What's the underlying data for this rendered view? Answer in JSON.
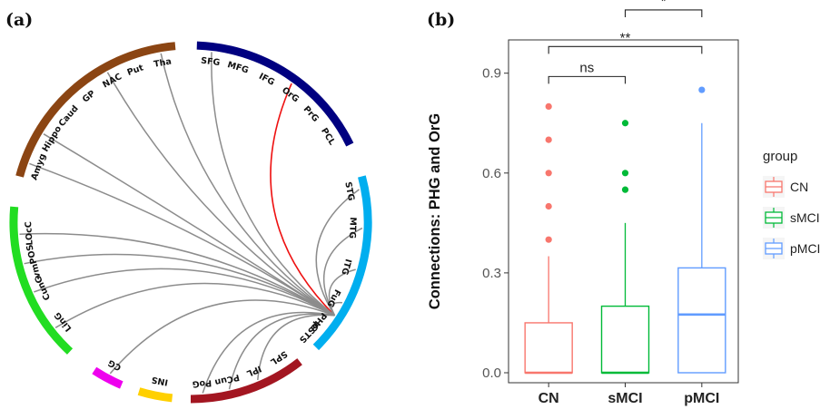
{
  "panel_a": {
    "label": "(a)",
    "chart_data": {
      "type": "chord",
      "colors": {
        "subcortical": "#8B4513",
        "frontal": "#000080",
        "temporal": "#00AEEF",
        "occipital": "#22DD22",
        "cingulate": "#EE00EE",
        "insula": "#FFD000",
        "parietal": "#A31621",
        "link_default": "#8c8c8c",
        "link_highlight": "#EE1111"
      },
      "regions": [
        {
          "label": "SFG",
          "group": "frontal"
        },
        {
          "label": "MFG",
          "group": "frontal"
        },
        {
          "label": "IFG",
          "group": "frontal"
        },
        {
          "label": "OrG",
          "group": "frontal"
        },
        {
          "label": "PrG",
          "group": "frontal"
        },
        {
          "label": "PCL",
          "group": "frontal"
        },
        {
          "label": "STG",
          "group": "temporal"
        },
        {
          "label": "MTG",
          "group": "temporal"
        },
        {
          "label": "ITG",
          "group": "temporal"
        },
        {
          "label": "FuG",
          "group": "temporal"
        },
        {
          "label": "PHG",
          "group": "temporal"
        },
        {
          "label": "pSTS",
          "group": "temporal"
        },
        {
          "label": "SPL",
          "group": "parietal"
        },
        {
          "label": "IPL",
          "group": "parietal"
        },
        {
          "label": "PCun",
          "group": "parietal"
        },
        {
          "label": "PoG",
          "group": "parietal"
        },
        {
          "label": "INS",
          "group": "insula"
        },
        {
          "label": "CG",
          "group": "cingulate"
        },
        {
          "label": "LinG",
          "group": "occipital"
        },
        {
          "label": "CunG",
          "group": "occipital"
        },
        {
          "label": "vmPOS",
          "group": "occipital"
        },
        {
          "label": "LOcC",
          "group": "occipital"
        },
        {
          "label": "Amyg",
          "group": "subcortical"
        },
        {
          "label": "Hippo",
          "group": "subcortical"
        },
        {
          "label": "Caud",
          "group": "subcortical"
        },
        {
          "label": "GP",
          "group": "subcortical"
        },
        {
          "label": "NAC",
          "group": "subcortical"
        },
        {
          "label": "Put",
          "group": "subcortical"
        },
        {
          "label": "Tha",
          "group": "subcortical"
        }
      ],
      "links": [
        {
          "source": "PHG",
          "target": "OrG",
          "highlight": true
        },
        {
          "source": "PHG",
          "target": "SFG",
          "highlight": false
        },
        {
          "source": "PHG",
          "target": "NAC",
          "highlight": false
        },
        {
          "source": "PHG",
          "target": "Tha",
          "highlight": false
        },
        {
          "source": "PHG",
          "target": "Hippo",
          "highlight": false
        },
        {
          "source": "PHG",
          "target": "Amyg",
          "highlight": false
        },
        {
          "source": "PHG",
          "target": "LOcC",
          "highlight": false
        },
        {
          "source": "PHG",
          "target": "vmPOS",
          "highlight": false
        },
        {
          "source": "PHG",
          "target": "CunG",
          "highlight": false
        },
        {
          "source": "PHG",
          "target": "LinG",
          "highlight": false
        },
        {
          "source": "PHG",
          "target": "CG",
          "highlight": false
        },
        {
          "source": "PHG",
          "target": "PoG",
          "highlight": false
        },
        {
          "source": "PHG",
          "target": "PCun",
          "highlight": false
        },
        {
          "source": "PHG",
          "target": "IPL",
          "highlight": false
        },
        {
          "source": "PHG",
          "target": "STG",
          "highlight": false
        },
        {
          "source": "PHG",
          "target": "MTG",
          "highlight": false
        },
        {
          "source": "PHG",
          "target": "ITG",
          "highlight": false
        },
        {
          "source": "PHG",
          "target": "FuG",
          "highlight": false
        }
      ]
    }
  },
  "panel_b": {
    "label": "(b)",
    "chart_data": {
      "type": "boxplot",
      "ylabel": "Connections: PHG and OrG",
      "xlabel": "",
      "ylim": [
        -0.03,
        1.0
      ],
      "yticks": [
        0.0,
        0.3,
        0.6,
        0.9
      ],
      "ytick_labels": [
        "0.0",
        "0.3",
        "0.6",
        "0.9"
      ],
      "grid": false,
      "categories": [
        "CN",
        "sMCI",
        "pMCI"
      ],
      "legend": {
        "title": "group",
        "position": "right",
        "entries": [
          "CN",
          "sMCI",
          "pMCI"
        ]
      },
      "series": [
        {
          "name": "CN",
          "color": "#F8766D",
          "q1": 0.0,
          "median": 0.0,
          "q3": 0.15,
          "whisker_low": 0.0,
          "whisker_high": 0.35,
          "outliers": [
            0.4,
            0.5,
            0.6,
            0.7,
            0.8
          ]
        },
        {
          "name": "sMCI",
          "color": "#00BA38",
          "q1": 0.0,
          "median": 0.0,
          "q3": 0.2,
          "whisker_low": 0.0,
          "whisker_high": 0.45,
          "outliers": [
            0.55,
            0.6,
            0.75
          ]
        },
        {
          "name": "pMCI",
          "color": "#619CFF",
          "q1": 0.0,
          "median": 0.175,
          "q3": 0.315,
          "whisker_low": 0.0,
          "whisker_high": 0.75,
          "outliers": [
            0.85
          ]
        }
      ],
      "significance": [
        {
          "from": "CN",
          "to": "sMCI",
          "label": "ns",
          "y": 0.89
        },
        {
          "from": "CN",
          "to": "pMCI",
          "label": "**",
          "y": 0.98
        },
        {
          "from": "sMCI",
          "to": "pMCI",
          "label": "*",
          "y": 1.09
        }
      ]
    }
  }
}
